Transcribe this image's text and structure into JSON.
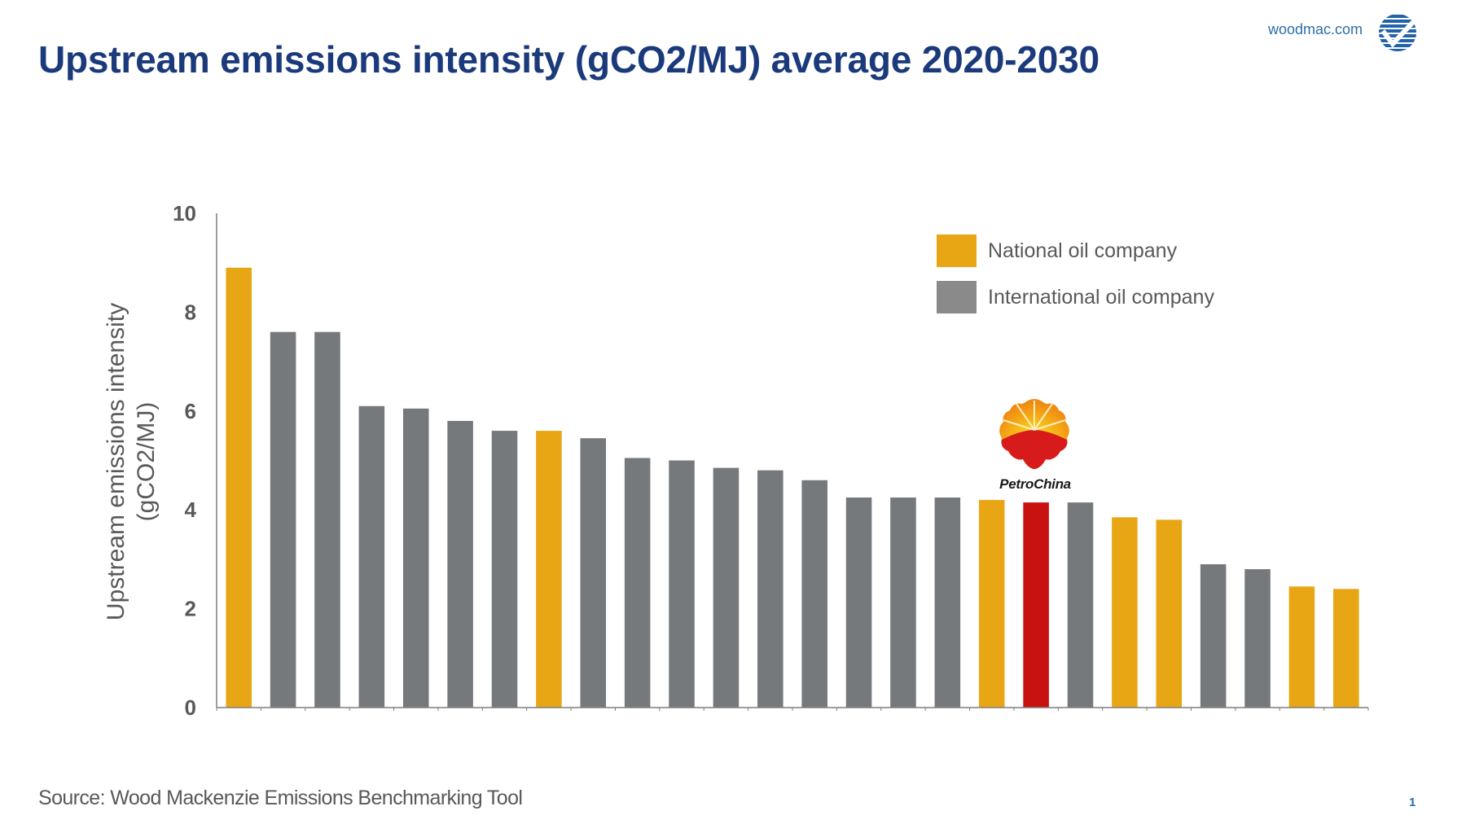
{
  "header": {
    "title": "Upstream emissions intensity (gCO2/MJ) average 2020-2030",
    "site_link": "woodmac.com",
    "brand_logo_icon": "woodmac-checkmark-globe-icon"
  },
  "footer": {
    "source": "Source: Wood Mackenzie Emissions Benchmarking Tool",
    "page_number": "1"
  },
  "colors": {
    "title": "#1b3a7c",
    "national": "#e8a614",
    "international": "#76797c",
    "highlight": "#c8120f",
    "axis": "#7f7f7f",
    "text": "#595959"
  },
  "annotation": {
    "label": "PetroChina",
    "icon": "petrochina-logo-icon",
    "bar_index": 18
  },
  "chart_data": {
    "type": "bar",
    "title": "Upstream emissions intensity (gCO2/MJ) average 2020-2030",
    "xlabel": "",
    "ylabel": "Upstream emissions intensity (gCO2/MJ)",
    "ylabel_lines": [
      "Upstream emissions intensity",
      "(gCO2/MJ)"
    ],
    "ylim": [
      0,
      10
    ],
    "yticks": [
      0,
      2,
      4,
      6,
      8,
      10
    ],
    "grid": false,
    "legend_position": "top-right",
    "legend": [
      {
        "key": "national",
        "label": "National oil company"
      },
      {
        "key": "international",
        "label": "International oil company"
      }
    ],
    "categories": [
      "",
      "",
      "",
      "",
      "",
      "",
      "",
      "",
      "",
      "",
      "",
      "",
      "",
      "",
      "",
      "",
      "",
      "",
      "PetroChina",
      "",
      "",
      "",
      "",
      "",
      "",
      ""
    ],
    "values": [
      8.9,
      7.6,
      7.6,
      6.1,
      6.05,
      5.8,
      5.6,
      5.6,
      5.45,
      5.05,
      5.0,
      4.85,
      4.8,
      4.6,
      4.25,
      4.25,
      4.25,
      4.2,
      4.15,
      4.15,
      3.85,
      3.8,
      2.9,
      2.8,
      2.45,
      2.4
    ],
    "types": [
      "national",
      "international",
      "international",
      "international",
      "international",
      "international",
      "international",
      "national",
      "international",
      "international",
      "international",
      "international",
      "international",
      "international",
      "international",
      "international",
      "international",
      "national",
      "highlight",
      "international",
      "national",
      "national",
      "international",
      "international",
      "national",
      "national"
    ]
  }
}
